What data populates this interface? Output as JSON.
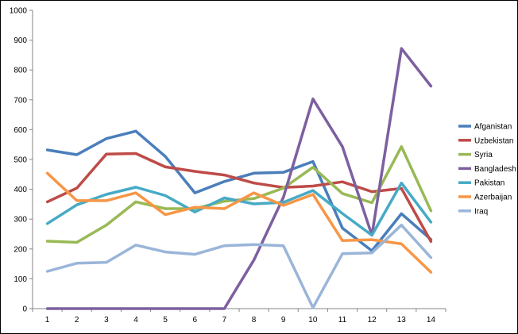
{
  "chart_data": {
    "type": "line",
    "title": "",
    "xlabel": "",
    "ylabel": "",
    "categories": [
      "1",
      "2",
      "3",
      "4",
      "5",
      "6",
      "7",
      "8",
      "9",
      "10",
      "11",
      "12",
      "13",
      "14"
    ],
    "ylim": [
      0,
      1000
    ],
    "yticks": [
      0,
      100,
      200,
      300,
      400,
      500,
      600,
      700,
      800,
      900,
      1000
    ],
    "grid": false,
    "legend_position": "right",
    "series": [
      {
        "name": "Afganistan",
        "color": "#4a7ebb",
        "values": [
          532,
          516,
          570,
          595,
          510,
          388,
          426,
          454,
          457,
          493,
          270,
          194,
          318,
          232
        ]
      },
      {
        "name": "Uzbekistan",
        "color": "#be4b48",
        "values": [
          358,
          404,
          518,
          520,
          475,
          460,
          448,
          421,
          406,
          411,
          425,
          392,
          403,
          225
        ]
      },
      {
        "name": "Syria",
        "color": "#98b954",
        "values": [
          226,
          222,
          280,
          358,
          335,
          335,
          360,
          369,
          404,
          474,
          386,
          355,
          543,
          328
        ]
      },
      {
        "name": "Bangladesh",
        "color": "#7d60a0",
        "values": [
          0,
          0,
          0,
          0,
          0,
          0,
          0,
          163,
          373,
          703,
          543,
          246,
          872,
          746
        ]
      },
      {
        "name": "Pakistan",
        "color": "#46aac5",
        "values": [
          285,
          348,
          383,
          407,
          379,
          324,
          371,
          351,
          356,
          396,
          319,
          246,
          421,
          290
        ]
      },
      {
        "name": "Azerbaijan",
        "color": "#f79646",
        "values": [
          454,
          362,
          362,
          388,
          315,
          340,
          335,
          388,
          346,
          383,
          228,
          231,
          217,
          122
        ]
      },
      {
        "name": "Iraq",
        "color": "#9ab5d9",
        "values": [
          125,
          152,
          155,
          213,
          190,
          182,
          211,
          215,
          211,
          3,
          184,
          187,
          280,
          171
        ]
      }
    ]
  }
}
